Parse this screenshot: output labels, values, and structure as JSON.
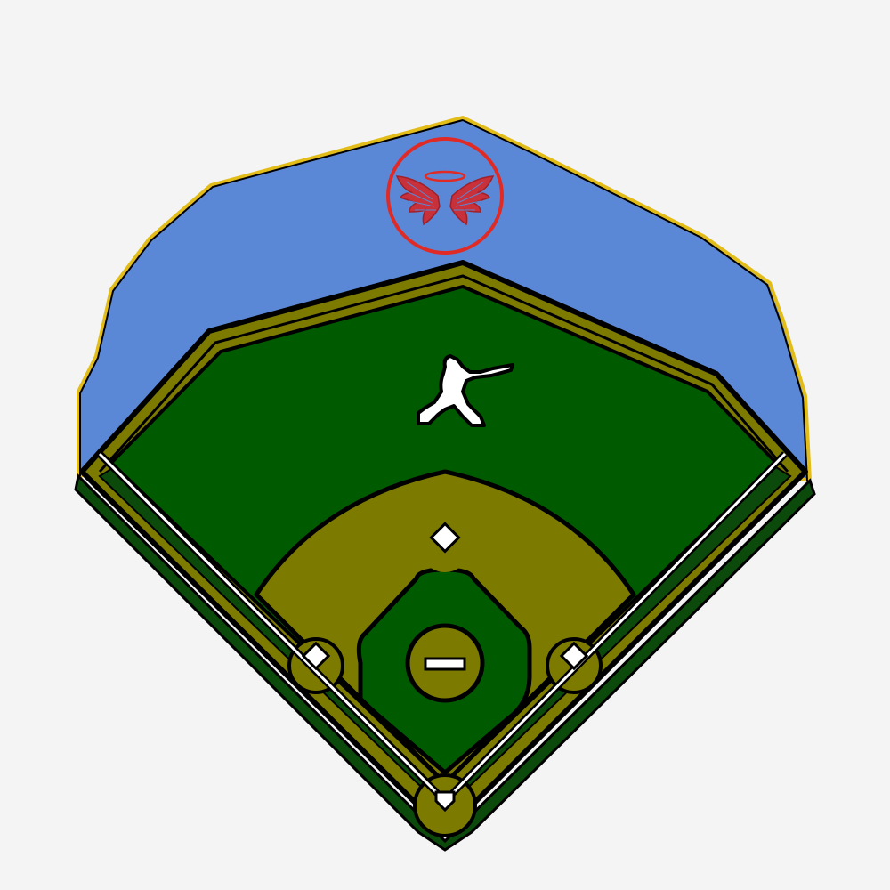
{
  "colors": {
    "background": "#f4f4f4",
    "stands_blue": "#5b88d6",
    "stands_outline_gold": "#e2bd1a",
    "outline": "#000000",
    "dirt_olive": "#7d7a00",
    "grass_green": "#005a00",
    "grass_dark": "#0b4a0b",
    "chalk_white": "#ffffff",
    "logo_red": "#e02a25"
  },
  "icons": {
    "logo": "halo-wings-logo-icon",
    "batter": "batter-silhouette-icon"
  },
  "field": {
    "bases": [
      "home-plate",
      "first-base",
      "second-base",
      "third-base"
    ],
    "pitcher_rubber": "pitcher-rubber"
  }
}
